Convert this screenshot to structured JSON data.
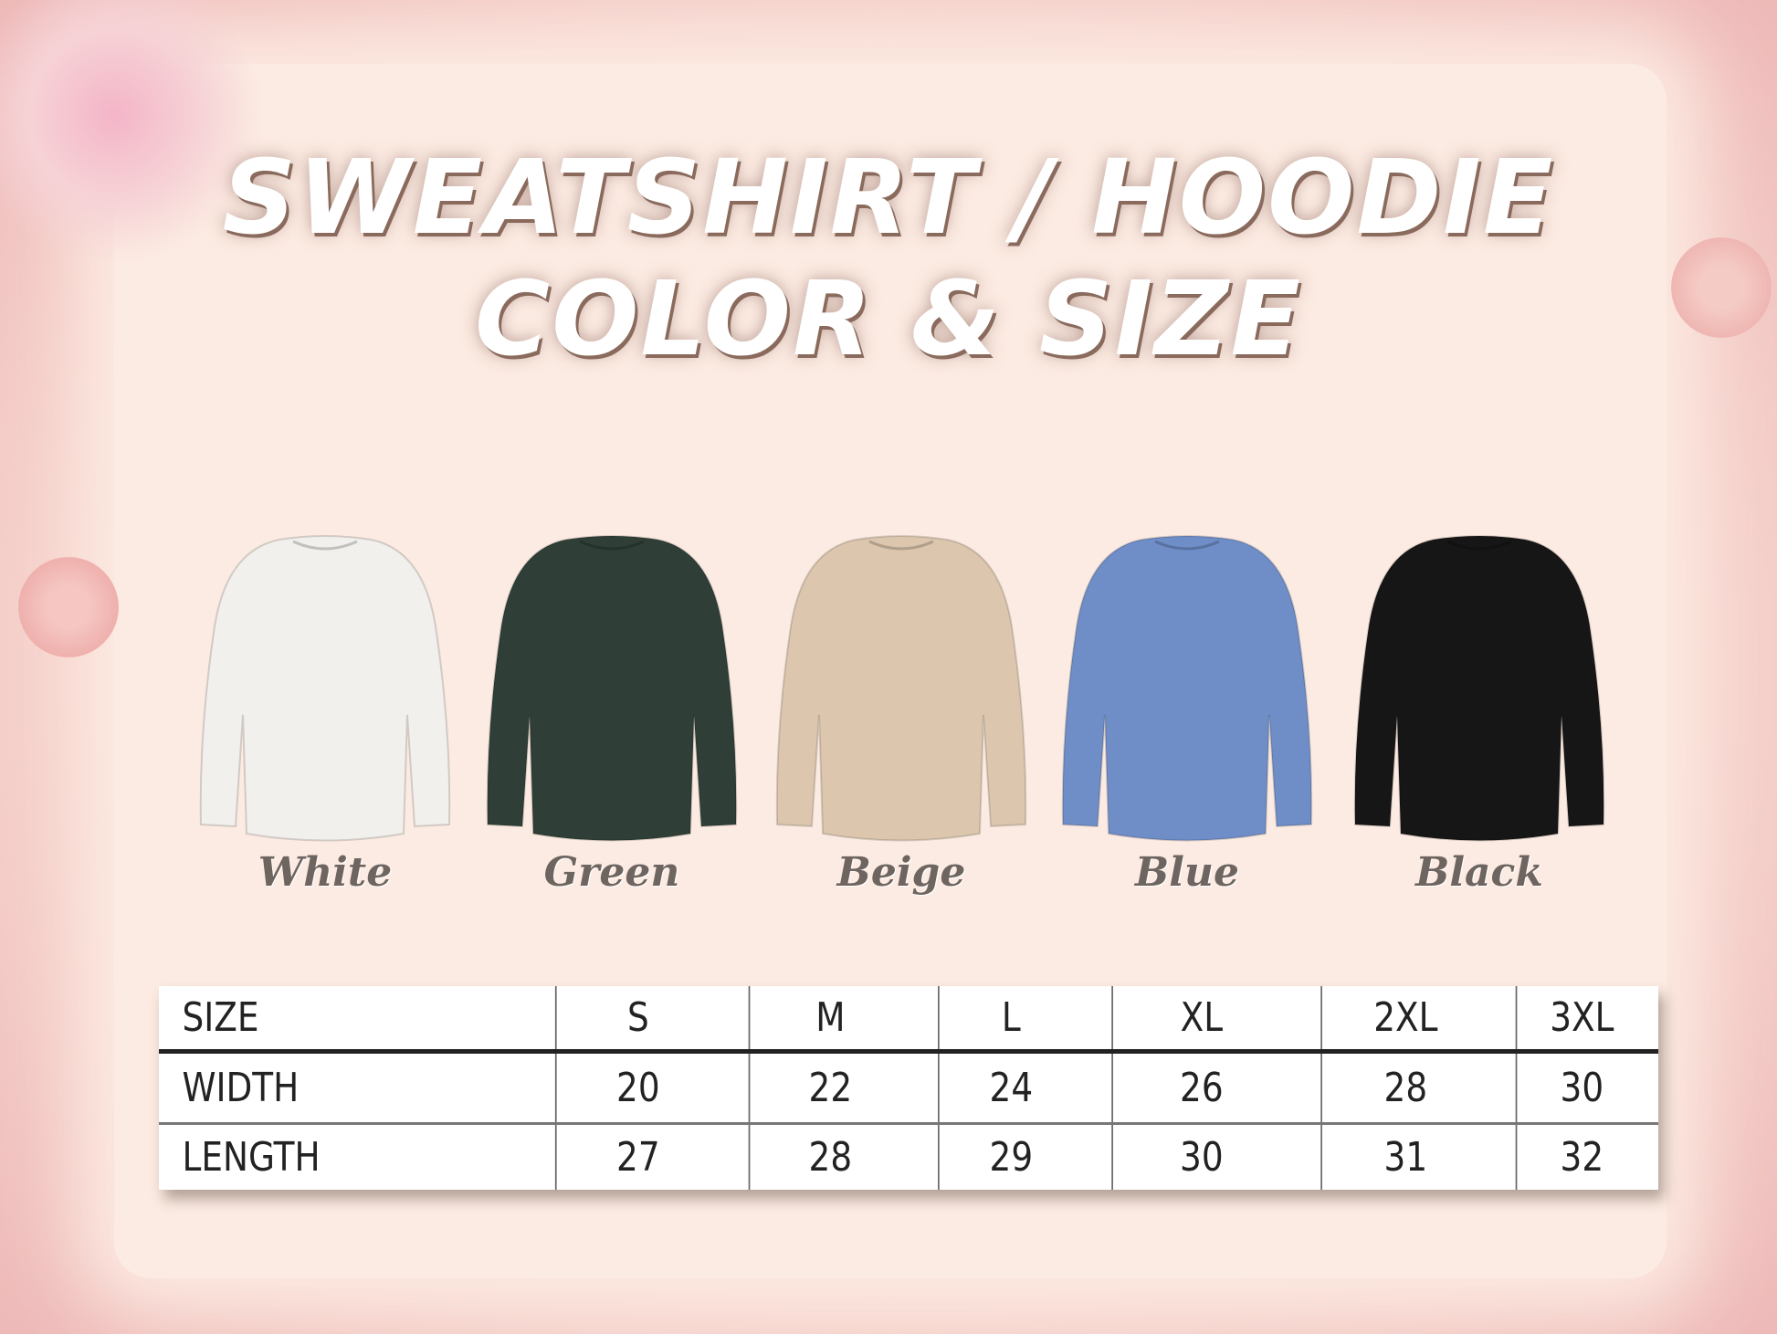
{
  "title": {
    "line1": "SWEATSHIRT / HOODIE",
    "line2": "COLOR & SIZE"
  },
  "colors": [
    {
      "label": "White",
      "hex": "#f1f0ec"
    },
    {
      "label": "Green",
      "hex": "#2f3f37"
    },
    {
      "label": "Beige",
      "hex": "#dcc7ae"
    },
    {
      "label": "Blue",
      "hex": "#6f8ec8"
    },
    {
      "label": "Black",
      "hex": "#161616"
    }
  ],
  "size_table": {
    "header": [
      "SIZE",
      "S",
      "M",
      "L",
      "XL",
      "2XL",
      "3XL"
    ],
    "rows": [
      [
        "WIDTH",
        "20",
        "22",
        "24",
        "26",
        "28",
        "30"
      ],
      [
        "LENGTH",
        "27",
        "28",
        "29",
        "30",
        "31",
        "32"
      ]
    ]
  }
}
